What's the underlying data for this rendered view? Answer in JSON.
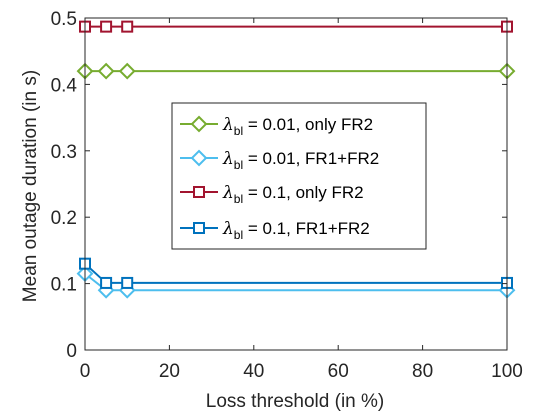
{
  "chart_data": {
    "type": "line",
    "xlabel": "Loss threshold (in %)",
    "ylabel": "Mean outage duration (in s)",
    "xlim": [
      0,
      100
    ],
    "ylim": [
      0,
      0.5
    ],
    "xticks": [
      0,
      20,
      40,
      60,
      80,
      100
    ],
    "yticks": [
      0,
      0.1,
      0.2,
      0.3,
      0.4,
      0.5
    ],
    "xtick_labels": [
      "0",
      "20",
      "40",
      "60",
      "80",
      "100"
    ],
    "ytick_labels": [
      "0",
      "0.1",
      "0.2",
      "0.3",
      "0.4",
      "0.5"
    ],
    "grid": false,
    "legend_position": "center",
    "series": [
      {
        "name": "λbl = 0.01, only FR2",
        "legend": {
          "symbol": "λ",
          "subscript": "bl",
          "rest": " = 0.01, only FR2"
        },
        "marker": "diamond",
        "color": "#77AC30",
        "x": [
          0,
          5,
          10,
          100
        ],
        "y": [
          0.42,
          0.42,
          0.42,
          0.42
        ]
      },
      {
        "name": "λbl = 0.01, FR1+FR2",
        "legend": {
          "symbol": "λ",
          "subscript": "bl",
          "rest": " = 0.01, FR1+FR2"
        },
        "marker": "diamond",
        "color": "#4DBEEE",
        "x": [
          0,
          5,
          10,
          100
        ],
        "y": [
          0.115,
          0.09,
          0.09,
          0.09
        ]
      },
      {
        "name": "λbl = 0.1, only FR2",
        "legend": {
          "symbol": "λ",
          "subscript": "bl",
          "rest": " = 0.1, only FR2"
        },
        "marker": "square",
        "color": "#A2142F",
        "x": [
          0,
          5,
          10,
          100
        ],
        "y": [
          0.487,
          0.487,
          0.487,
          0.487
        ]
      },
      {
        "name": "λbl = 0.1, FR1+FR2",
        "legend": {
          "symbol": "λ",
          "subscript": "bl",
          "rest": " = 0.1, FR1+FR2"
        },
        "marker": "square",
        "color": "#0072BD",
        "x": [
          0,
          5,
          10,
          100
        ],
        "y": [
          0.13,
          0.101,
          0.101,
          0.101
        ]
      }
    ]
  }
}
